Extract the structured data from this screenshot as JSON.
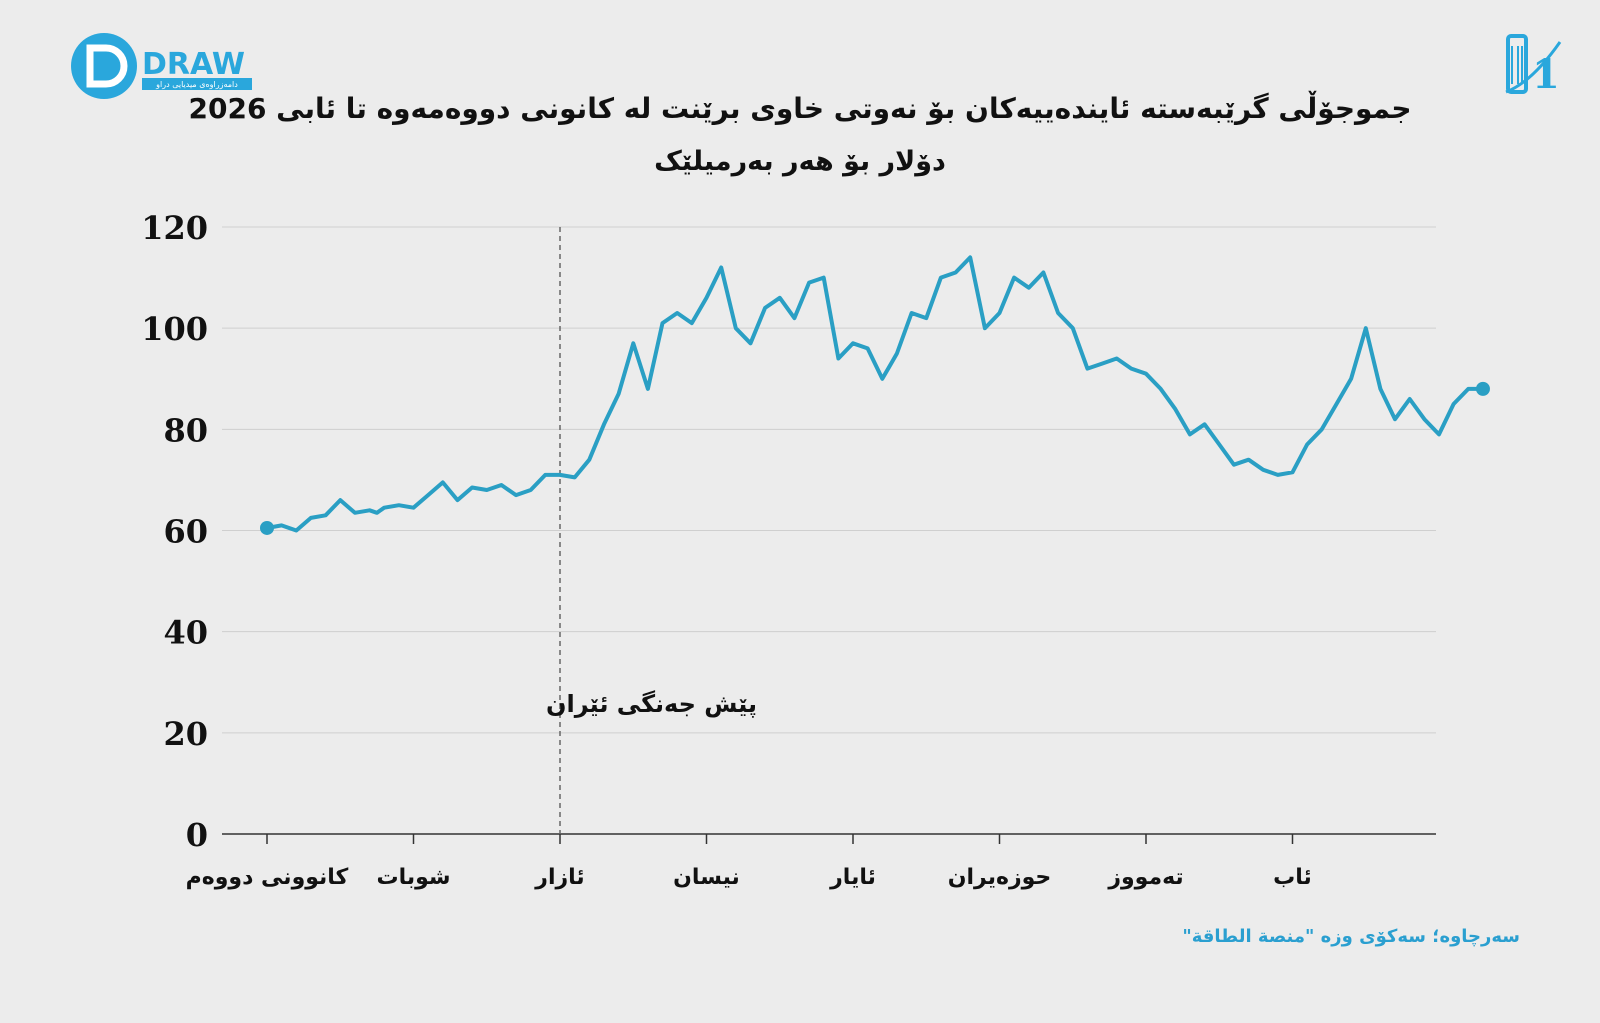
{
  "header": {
    "logo_left_text": "DRAW",
    "logo_left_tagline": "دامەزراوەی میدیایی دراو",
    "logo_right_text": "1",
    "title": "جموجۆڵی گرێبەستە ئایندەییەکان بۆ نەوتی خاوی برێنت لە کانونی دووەمەوە تا ئابی 2026",
    "subtitle": "دۆلار بۆ هەر بەرمیلێک"
  },
  "colors": {
    "line": "#2a9fc4",
    "grid": "#cfcfcf",
    "axis": "#333333",
    "source": "#2a9fd0"
  },
  "footer": {
    "source": "سەرچاوە؛ سەکۆی وزە \"منصة الطاقة\""
  },
  "chart_data": {
    "type": "line",
    "title": "جموجۆڵی گرێبەستە ئایندەییەکان بۆ نەوتی خاوی برێنت لە کانونی دووەمەوە تا ئابی 2026",
    "ylabel": "دۆلار بۆ هەر بەرمیلێک",
    "ylim": [
      0,
      120
    ],
    "yticks": [
      0,
      20,
      40,
      60,
      80,
      100,
      120
    ],
    "grid": true,
    "months": [
      "کانوونی دووەم",
      "شوبات",
      "ئازار",
      "نیسان",
      "ئایار",
      "حوزەیران",
      "تەمووز",
      "ئاب"
    ],
    "annotation": {
      "label": "پێش جەنگی ئێران",
      "x": 2
    },
    "x": [
      0,
      0.1,
      0.2,
      0.3,
      0.4,
      0.5,
      0.6,
      0.7,
      0.75,
      0.8,
      0.9,
      1.0,
      1.1,
      1.2,
      1.3,
      1.4,
      1.5,
      1.6,
      1.7,
      1.8,
      1.9,
      2.0,
      2.1,
      2.2,
      2.3,
      2.4,
      2.5,
      2.6,
      2.7,
      2.8,
      2.9,
      3.0,
      3.1,
      3.2,
      3.3,
      3.4,
      3.5,
      3.6,
      3.7,
      3.8,
      3.9,
      4.0,
      4.1,
      4.2,
      4.3,
      4.4,
      4.5,
      4.6,
      4.7,
      4.8,
      4.9,
      5.0,
      5.1,
      5.2,
      5.3,
      5.4,
      5.5,
      5.6,
      5.7,
      5.8,
      5.9,
      6.0,
      6.1,
      6.2,
      6.3,
      6.4,
      6.5,
      6.6,
      6.7,
      6.8,
      6.9,
      7.0,
      7.1,
      7.2,
      7.3,
      7.4,
      7.5,
      7.6,
      7.7,
      7.8,
      7.9,
      8.0,
      8.1,
      8.2,
      8.3
    ],
    "values": [
      60.5,
      61,
      60,
      62.5,
      63,
      66,
      63.5,
      64,
      63.5,
      64.5,
      65,
      64.5,
      67,
      69.5,
      66,
      68.5,
      68,
      69,
      67,
      68,
      71,
      71,
      70.5,
      74,
      81,
      87,
      97,
      88,
      101,
      103,
      101,
      106,
      112,
      100,
      97,
      104,
      106,
      102,
      109,
      110,
      94,
      97,
      96,
      90,
      95,
      103,
      102,
      110,
      111,
      114,
      100,
      103,
      110,
      108,
      111,
      103,
      100,
      92,
      93,
      94,
      92,
      91,
      88,
      84,
      79,
      81,
      77,
      73,
      74,
      72,
      71,
      71.5,
      77,
      80,
      85,
      90,
      100,
      88,
      82,
      86,
      82,
      79,
      85,
      88,
      88
    ]
  }
}
